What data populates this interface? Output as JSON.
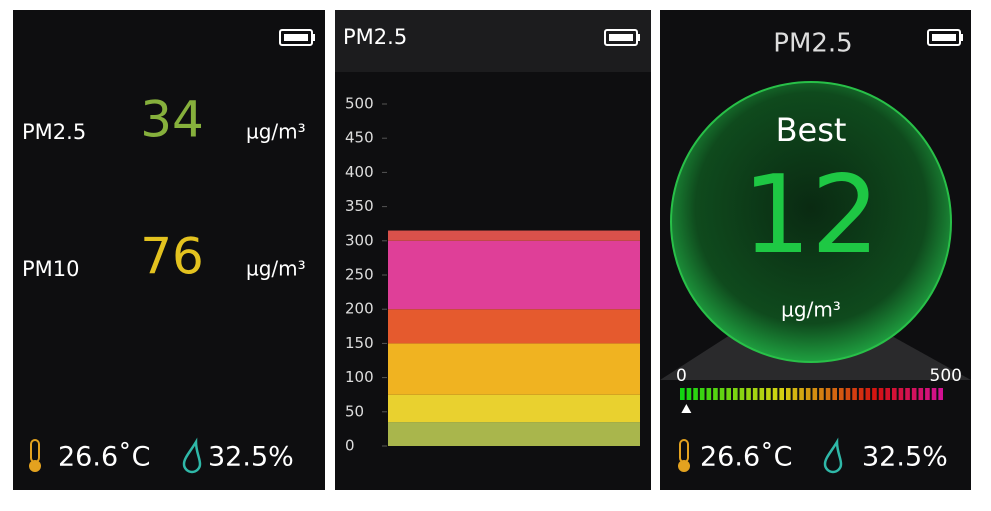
{
  "screens": [
    {
      "rows": [
        {
          "label": "PM2.5",
          "value": "34",
          "unit": "µg/m³"
        },
        {
          "label": "PM10",
          "value": "76",
          "unit": "µg/m³"
        }
      ],
      "temperature": "26.6˚C",
      "humidity": "32.5%"
    },
    {
      "title": "PM2.5",
      "yticks": [
        0,
        50,
        100,
        150,
        200,
        250,
        300,
        350,
        400,
        450,
        500
      ],
      "ylim": [
        0,
        500
      ],
      "bands": [
        {
          "from": 0,
          "to": 35,
          "color": "#a9b64c"
        },
        {
          "from": 35,
          "to": 75,
          "color": "#e9d12f"
        },
        {
          "from": 75,
          "to": 150,
          "color": "#f0b321"
        },
        {
          "from": 150,
          "to": 200,
          "color": "#e55a2e"
        },
        {
          "from": 200,
          "to": 300,
          "color": "#df3f98"
        },
        {
          "from": 300,
          "to": 315,
          "color": "#d9514b"
        }
      ]
    },
    {
      "title": "PM2.5",
      "level": "Best",
      "value": 12,
      "unit": "µg/m³",
      "scale": {
        "min": 0,
        "max": 500
      },
      "temperature": "26.6˚C",
      "humidity": "32.5%"
    }
  ]
}
